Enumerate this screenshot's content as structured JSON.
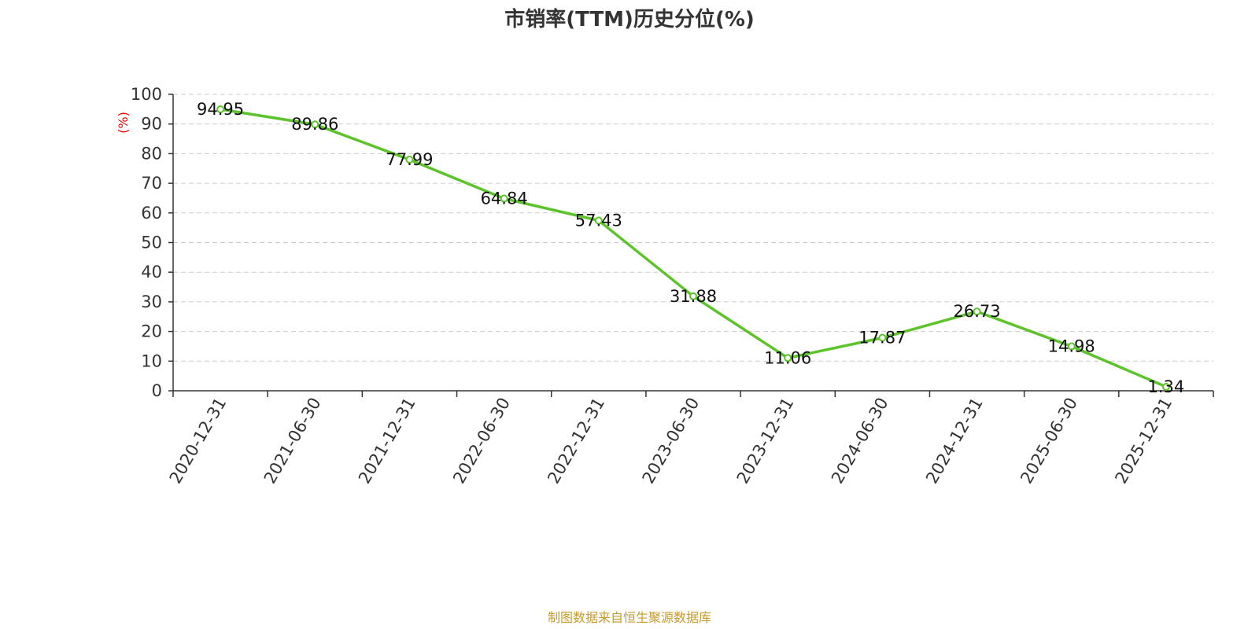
{
  "chart_data": {
    "type": "line",
    "title": "市销率(TTM)历史分位(%)",
    "ylabel": "(%)",
    "ylim": [
      0,
      100
    ],
    "yticks": [
      0,
      10,
      20,
      30,
      40,
      50,
      60,
      70,
      80,
      90,
      100
    ],
    "grid": "horizontal-dashed",
    "categories": [
      "2020-12-31",
      "2021-06-30",
      "2021-12-31",
      "2022-06-30",
      "2022-12-31",
      "2023-06-30",
      "2023-12-31",
      "2024-06-30",
      "2024-12-31",
      "2025-06-30",
      "2025-12-31"
    ],
    "series": [
      {
        "values": [
          94.95,
          89.86,
          77.99,
          64.84,
          57.43,
          31.88,
          11.06,
          17.87,
          26.73,
          14.98,
          1.34
        ],
        "color": "#5cc42a"
      }
    ]
  },
  "footer": {
    "source": "制图数据来自恒生聚源数据库"
  },
  "colors": {
    "ylabel": "#ff0000",
    "grid": "#cccccc",
    "axis": "#333333",
    "source": "#c79a2e"
  }
}
